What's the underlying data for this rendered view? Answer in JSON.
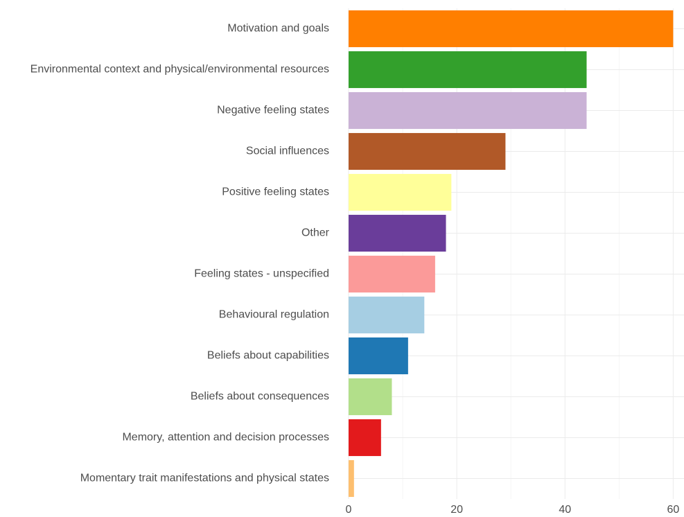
{
  "chart_data": {
    "type": "bar",
    "orientation": "horizontal",
    "categories": [
      "Motivation and goals",
      "Environmental context and physical/environmental resources",
      "Negative feeling states",
      "Social influences",
      "Positive feeling states",
      "Other",
      "Feeling states - unspecified",
      "Behavioural regulation",
      "Beliefs about capabilities",
      "Beliefs about consequences",
      "Memory, attention and decision processes",
      "Momentary trait manifestations and physical states"
    ],
    "values": [
      60,
      44,
      44,
      29,
      19,
      18,
      16,
      14,
      11,
      8,
      6,
      1
    ],
    "colors": [
      "#FF7F00",
      "#33A02C",
      "#CAB2D6",
      "#B15928",
      "#FFFF99",
      "#6A3D9A",
      "#FB9A99",
      "#A6CEE3",
      "#1F78B4",
      "#B2DF8A",
      "#E31A1C",
      "#FDBF6F"
    ],
    "xlim": [
      0,
      62
    ],
    "x_ticks": [
      0,
      20,
      40,
      60
    ],
    "x_tick_labels": [
      "0",
      "20",
      "40",
      "60"
    ],
    "grid": true,
    "title": "",
    "xlabel": "",
    "ylabel": ""
  }
}
